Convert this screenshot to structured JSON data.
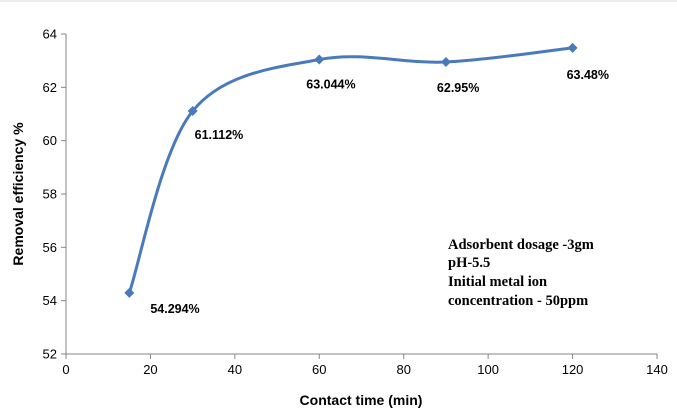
{
  "chart_data": {
    "type": "line",
    "x": [
      15,
      30,
      60,
      90,
      120
    ],
    "series": [
      {
        "values": [
          54.294,
          61.112,
          63.044,
          62.95,
          63.48
        ],
        "color": "#4a7ab9"
      }
    ],
    "data_labels": [
      "54.294%",
      "61.112%",
      "63.044%",
      "62.95%",
      "63.48%"
    ],
    "xlabel": "Contact time (min)",
    "ylabel": "Removal efficiency %",
    "xlim": [
      0,
      140
    ],
    "ylim": [
      52,
      64
    ],
    "xticks": [
      0,
      20,
      40,
      60,
      80,
      100,
      120,
      140
    ],
    "yticks": [
      52,
      54,
      56,
      58,
      60,
      62,
      64
    ],
    "grid": false,
    "legend": "none",
    "smooth": true,
    "marker": "diamond",
    "annotation": [
      "Adsorbent dosage -3gm",
      "pH-5.5",
      "Initial metal ion",
      "concentration - 50ppm"
    ]
  }
}
